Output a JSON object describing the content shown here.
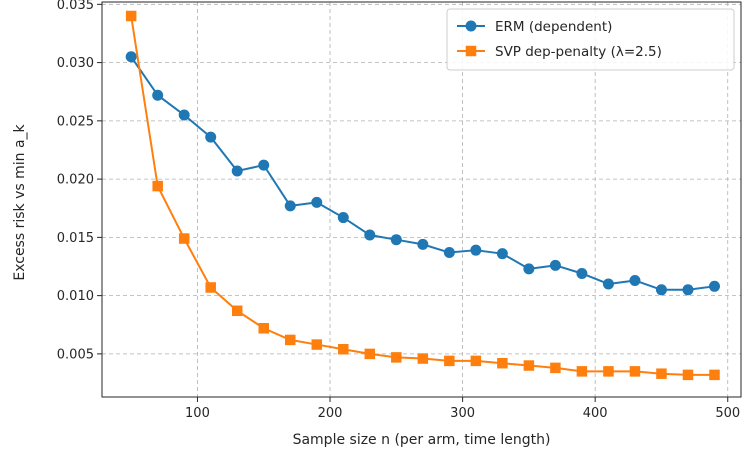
{
  "chart_data": {
    "type": "line",
    "title": "",
    "xlabel": "Sample size n (per arm, time length)",
    "ylabel": "Excess risk vs min a_k",
    "xlim": [
      28,
      510
    ],
    "ylim": [
      0.0013,
      0.0352
    ],
    "xticks": [
      100,
      200,
      300,
      400,
      500
    ],
    "xtick_labels": [
      "100",
      "200",
      "300",
      "400",
      "500"
    ],
    "yticks": [
      0.005,
      0.01,
      0.015,
      0.02,
      0.025,
      0.03,
      0.035
    ],
    "ytick_labels": [
      "0.005",
      "0.010",
      "0.015",
      "0.020",
      "0.025",
      "0.030",
      "0.035"
    ],
    "grid": true,
    "legend_position": "top-right",
    "x": [
      50,
      70,
      90,
      110,
      130,
      150,
      170,
      190,
      210,
      230,
      250,
      270,
      290,
      310,
      330,
      350,
      370,
      390,
      410,
      430,
      450,
      470,
      490
    ],
    "series": [
      {
        "name": "ERM (dependent)",
        "color": "#1f77b4",
        "marker": "circle",
        "values": [
          0.0305,
          0.0272,
          0.0255,
          0.0236,
          0.0207,
          0.0212,
          0.0177,
          0.018,
          0.0167,
          0.0152,
          0.0148,
          0.0144,
          0.0137,
          0.0139,
          0.0136,
          0.0123,
          0.0126,
          0.0119,
          0.011,
          0.0113,
          0.0105,
          0.0105,
          0.0108
        ]
      },
      {
        "name": "SVP dep-penalty (λ=2.5)",
        "color": "#ff7f0e",
        "marker": "square",
        "values": [
          0.034,
          0.0194,
          0.0149,
          0.0107,
          0.0087,
          0.0072,
          0.0062,
          0.0058,
          0.0054,
          0.005,
          0.0047,
          0.0046,
          0.0044,
          0.0044,
          0.0042,
          0.004,
          0.0038,
          0.0035,
          0.0035,
          0.0035,
          0.0033,
          0.0032,
          0.0032
        ]
      }
    ]
  }
}
